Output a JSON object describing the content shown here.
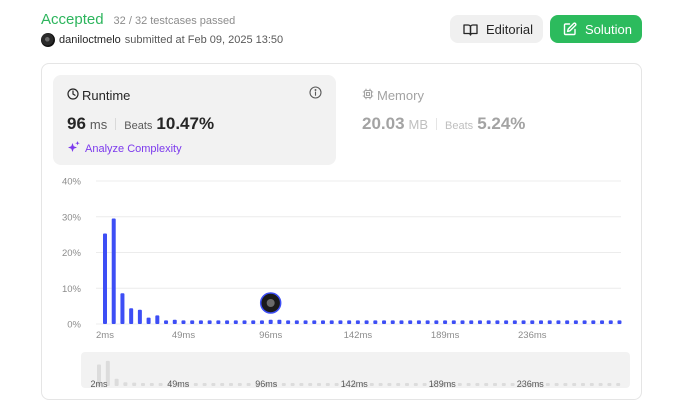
{
  "header": {
    "status": "Accepted",
    "testcases": "32 / 32 testcases passed",
    "username": "daniloctmelo",
    "submitted_text": "submitted at Feb 09, 2025 13:50",
    "editorial_label": "Editorial",
    "solution_label": "Solution"
  },
  "runtime": {
    "title": "Runtime",
    "value": "96",
    "unit": "ms",
    "beats_label": "Beats",
    "beats_value": "10.47%",
    "analyze_label": "Analyze Complexity"
  },
  "memory": {
    "title": "Memory",
    "value": "20.03",
    "unit": "MB",
    "beats_label": "Beats",
    "beats_value": "5.24%"
  },
  "colors": {
    "accepted": "#2db55d",
    "solution_button": "#2cbb5d",
    "bar": "#3d4ef5",
    "analyze": "#7c3aed",
    "grid": "#ececec"
  },
  "chart_data": {
    "type": "bar",
    "ylabel": "",
    "xlabel": "",
    "ylim": [
      0,
      40
    ],
    "y_ticks": [
      "40%",
      "30%",
      "20%",
      "10%",
      "0%"
    ],
    "y_tick_values": [
      40,
      30,
      20,
      10,
      0
    ],
    "x_ticks": [
      "2ms",
      "49ms",
      "96ms",
      "142ms",
      "189ms",
      "236ms"
    ],
    "x_tick_bar_index": [
      0,
      9,
      19,
      29,
      39,
      49
    ],
    "user_bar_index": 19,
    "user_value_ms": 96,
    "values": [
      25.3,
      29.5,
      8.6,
      4.4,
      4.0,
      1.8,
      2.4,
      1.0,
      1.2,
      1.0,
      1.0,
      1.0,
      1.0,
      1.0,
      1.0,
      1.0,
      1.0,
      1.0,
      1.0,
      1.2,
      1.2,
      1.0,
      1.0,
      1.0,
      1.0,
      1.0,
      1.0,
      1.0,
      1.0,
      1.0,
      1.0,
      1.0,
      1.0,
      1.0,
      1.0,
      1.0,
      1.0,
      1.0,
      1.0,
      1.0,
      1.0,
      1.0,
      1.0,
      1.0,
      1.0,
      1.0,
      1.0,
      1.0,
      1.0,
      1.0,
      1.0,
      1.0,
      1.0,
      1.0,
      1.0,
      1.0,
      1.0,
      1.0,
      1.0,
      1.0
    ],
    "overview_x_ticks": [
      "2ms",
      "49ms",
      "96ms",
      "142ms",
      "189ms",
      "236ms"
    ]
  }
}
